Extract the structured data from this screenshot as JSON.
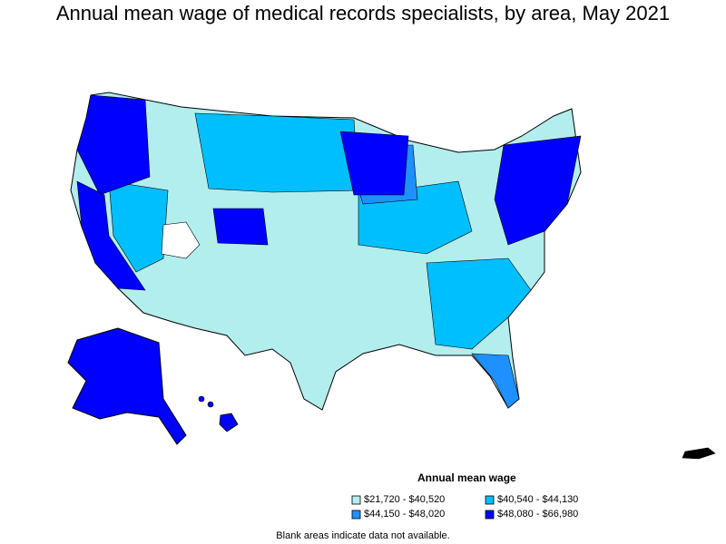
{
  "title": "Annual mean wage of medical records specialists, by area, May 2021",
  "legend": {
    "title": "Annual mean wage",
    "items": [
      {
        "label": "$21,720 - $40,520",
        "color": "#b3eeee"
      },
      {
        "label": "$40,540 - $44,130",
        "color": "#00bfff"
      },
      {
        "label": "$44,150 - $48,020",
        "color": "#1e90ff"
      },
      {
        "label": "$48,080 - $66,980",
        "color": "#0000ff"
      }
    ]
  },
  "note": "Blank areas indicate data not available.",
  "colors": {
    "border": "#000000",
    "blank": "#ffffff"
  }
}
